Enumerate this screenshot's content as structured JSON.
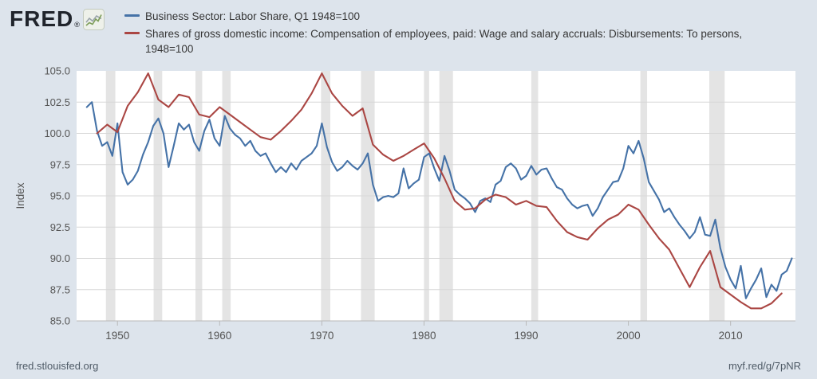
{
  "header": {
    "logo": {
      "text": "FRED",
      "reg": "®",
      "icon": "fred-sparkline-icon"
    },
    "legend": [
      {
        "label": "Business Sector: Labor Share, Q1 1948=100",
        "color": "#4572a7"
      },
      {
        "label": "Shares of gross domestic income: Compensation of employees, paid: Wage and salary accruals: Disbursements: To persons, 1948=100",
        "color": "#aa4643"
      }
    ]
  },
  "footer": {
    "left_link": "fred.stlouisfed.org",
    "right_link": "myf.red/g/7pNR"
  },
  "colors": {
    "background": "#dde4ec",
    "plot_background": "#ffffff",
    "grid": "#d7d7d7",
    "axis_line": "#b9b9b9",
    "recession_band": "#e4e4e4",
    "series_blue": "#4572a7",
    "series_red": "#aa4643",
    "axis_text": "#555555",
    "legend_text": "#363636",
    "footer_text": "#4e5a66"
  },
  "chart_data": {
    "type": "line",
    "title": "",
    "xlabel": "",
    "ylabel": "Index",
    "ylim": [
      85.0,
      105.0
    ],
    "ytick_step": 2.5,
    "ytick_decimals": 1,
    "xlim": [
      1946.0,
      2016.35
    ],
    "xticks": [
      1950,
      1960,
      1970,
      1980,
      1990,
      2000,
      2010
    ],
    "grid": "horizontal",
    "legend_position": "top",
    "recessions": [
      [
        1948.87,
        1949.79
      ],
      [
        1953.54,
        1954.38
      ],
      [
        1957.63,
        1958.29
      ],
      [
        1960.25,
        1961.08
      ],
      [
        1969.92,
        1970.83
      ],
      [
        1973.83,
        1975.17
      ],
      [
        1980.0,
        1980.5
      ],
      [
        1981.5,
        1982.83
      ],
      [
        1990.5,
        1991.17
      ],
      [
        2001.17,
        2001.83
      ],
      [
        2007.92,
        2009.42
      ]
    ],
    "series": [
      {
        "name": "Business Sector: Labor Share, Q1 1948=100",
        "color": "#4572a7",
        "x_start": 1947.0,
        "x_step": 0.5,
        "values": [
          102.1,
          102.5,
          100.2,
          99.0,
          99.3,
          98.2,
          100.8,
          96.9,
          95.9,
          96.3,
          97.0,
          98.3,
          99.3,
          100.6,
          101.2,
          100.0,
          97.3,
          99.0,
          100.8,
          100.3,
          100.7,
          99.3,
          98.6,
          100.2,
          101.1,
          99.6,
          99.0,
          101.4,
          100.4,
          99.9,
          99.6,
          99.0,
          99.4,
          98.6,
          98.2,
          98.4,
          97.6,
          96.9,
          97.3,
          96.9,
          97.6,
          97.1,
          97.8,
          98.1,
          98.4,
          99.0,
          100.8,
          98.9,
          97.7,
          97.0,
          97.3,
          97.8,
          97.4,
          97.1,
          97.6,
          98.4,
          95.9,
          94.6,
          94.9,
          95.0,
          94.9,
          95.2,
          97.2,
          95.6,
          96.0,
          96.3,
          98.1,
          98.4,
          97.2,
          96.2,
          98.2,
          97.0,
          95.5,
          95.1,
          94.8,
          94.4,
          93.7,
          94.6,
          94.8,
          94.5,
          95.9,
          96.2,
          97.3,
          97.6,
          97.2,
          96.3,
          96.6,
          97.4,
          96.7,
          97.1,
          97.2,
          96.4,
          95.7,
          95.5,
          94.8,
          94.3,
          94.0,
          94.2,
          94.3,
          93.4,
          94.0,
          94.9,
          95.5,
          96.1,
          96.2,
          97.2,
          99.0,
          98.4,
          99.4,
          98.0,
          96.1,
          95.4,
          94.7,
          93.7,
          94.0,
          93.3,
          92.7,
          92.2,
          91.6,
          92.1,
          93.3,
          91.9,
          91.8,
          93.1,
          90.8,
          89.3,
          88.3,
          87.6,
          89.4,
          86.8,
          87.6,
          88.3,
          89.2,
          86.9,
          87.9,
          87.4,
          88.7,
          89.0,
          90.0
        ]
      },
      {
        "name": "Shares of gross domestic income: Compensation of employees, paid: Wage and salary accruals: Disbursements: To persons, 1948=100",
        "color": "#aa4643",
        "x_start": 1948.0,
        "x_step": 1.0,
        "values": [
          100.0,
          100.7,
          100.1,
          102.2,
          103.3,
          104.8,
          102.7,
          102.1,
          103.1,
          102.9,
          101.5,
          101.3,
          102.1,
          101.5,
          100.9,
          100.3,
          99.7,
          99.5,
          100.2,
          101.0,
          101.9,
          103.2,
          104.8,
          103.2,
          102.2,
          101.4,
          102.0,
          99.1,
          98.3,
          97.8,
          98.2,
          98.7,
          99.2,
          98.0,
          96.4,
          94.6,
          93.9,
          94.0,
          94.7,
          95.1,
          94.9,
          94.3,
          94.6,
          94.2,
          94.1,
          93.0,
          92.1,
          91.7,
          91.5,
          92.4,
          93.1,
          93.5,
          94.3,
          93.9,
          92.7,
          91.6,
          90.7,
          89.2,
          87.7,
          89.3,
          90.6,
          87.7,
          87.1,
          86.5,
          86.0,
          86.0,
          86.4,
          87.2
        ]
      }
    ]
  }
}
